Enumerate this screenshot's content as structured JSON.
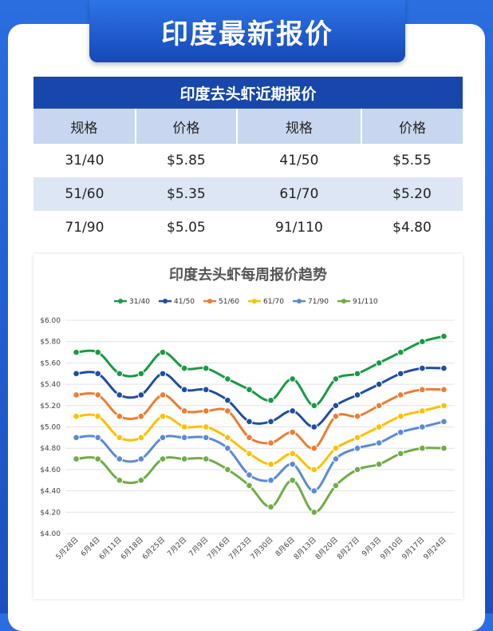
{
  "header": {
    "title": "印度最新报价"
  },
  "table": {
    "title": "印度去头虾近期报价",
    "header": [
      "规格",
      "价格",
      "规格",
      "价格"
    ],
    "rows": [
      [
        "31/40",
        "$5.85",
        "41/50",
        "$5.55"
      ],
      [
        "51/60",
        "$5.35",
        "61/70",
        "$5.20"
      ],
      [
        "71/90",
        "$5.05",
        "91/110",
        "$4.80"
      ]
    ]
  },
  "chart_data": {
    "type": "line",
    "title": "印度去头虾每周报价趋势",
    "categories": [
      "5月28日",
      "6月4日",
      "6月11日",
      "6月18日",
      "6月25日",
      "7月2日",
      "7月9日",
      "7月16日",
      "7月23日",
      "7月30日",
      "8月6日",
      "8月13日",
      "8月20日",
      "8月27日",
      "9月3日",
      "9月10日",
      "9月17日",
      "9月24日"
    ],
    "series": [
      {
        "name": "31/40",
        "color": "#1a9a44",
        "values": [
          5.7,
          5.7,
          5.5,
          5.5,
          5.7,
          5.55,
          5.55,
          5.45,
          5.35,
          5.25,
          5.45,
          5.2,
          5.45,
          5.5,
          5.6,
          5.7,
          5.8,
          5.85
        ]
      },
      {
        "name": "41/50",
        "color": "#1f4ea3",
        "values": [
          5.5,
          5.5,
          5.3,
          5.3,
          5.5,
          5.35,
          5.35,
          5.25,
          5.05,
          5.05,
          5.15,
          5.0,
          5.2,
          5.3,
          5.4,
          5.5,
          5.55,
          5.55
        ]
      },
      {
        "name": "51/60",
        "color": "#ed7d31",
        "values": [
          5.3,
          5.3,
          5.1,
          5.1,
          5.3,
          5.15,
          5.15,
          5.15,
          4.9,
          4.85,
          4.95,
          4.8,
          5.1,
          5.1,
          5.2,
          5.3,
          5.35,
          5.35
        ]
      },
      {
        "name": "61/70",
        "color": "#ffc000",
        "values": [
          5.1,
          5.1,
          4.9,
          4.9,
          5.1,
          5.0,
          5.0,
          4.9,
          4.75,
          4.65,
          4.75,
          4.6,
          4.8,
          4.9,
          5.0,
          5.1,
          5.15,
          5.2
        ]
      },
      {
        "name": "71/90",
        "color": "#5b8bd6",
        "values": [
          4.9,
          4.9,
          4.7,
          4.7,
          4.9,
          4.9,
          4.9,
          4.8,
          4.55,
          4.5,
          4.65,
          4.4,
          4.7,
          4.8,
          4.85,
          4.95,
          5.0,
          5.05
        ]
      },
      {
        "name": "91/110",
        "color": "#70ad47",
        "values": [
          4.7,
          4.7,
          4.5,
          4.5,
          4.7,
          4.7,
          4.7,
          4.6,
          4.45,
          4.25,
          4.5,
          4.2,
          4.45,
          4.6,
          4.65,
          4.75,
          4.8,
          4.8
        ]
      }
    ],
    "ylim": [
      4,
      6
    ],
    "yticks": [
      {
        "value": 4,
        "label": "$4.00"
      },
      {
        "value": 4.2,
        "label": "$4.20"
      },
      {
        "value": 4.4,
        "label": "$4.40"
      },
      {
        "value": 4.6,
        "label": "$4.60"
      },
      {
        "value": 4.8,
        "label": "$4.80"
      },
      {
        "value": 5,
        "label": "$5.00"
      },
      {
        "value": 5.2,
        "label": "$5.20"
      },
      {
        "value": 5.4,
        "label": "$5.40"
      },
      {
        "value": 5.6,
        "label": "$5.60"
      },
      {
        "value": 5.8,
        "label": "$5.80"
      },
      {
        "value": 6,
        "label": "$6.00"
      }
    ],
    "grid": true,
    "legend": "top"
  }
}
